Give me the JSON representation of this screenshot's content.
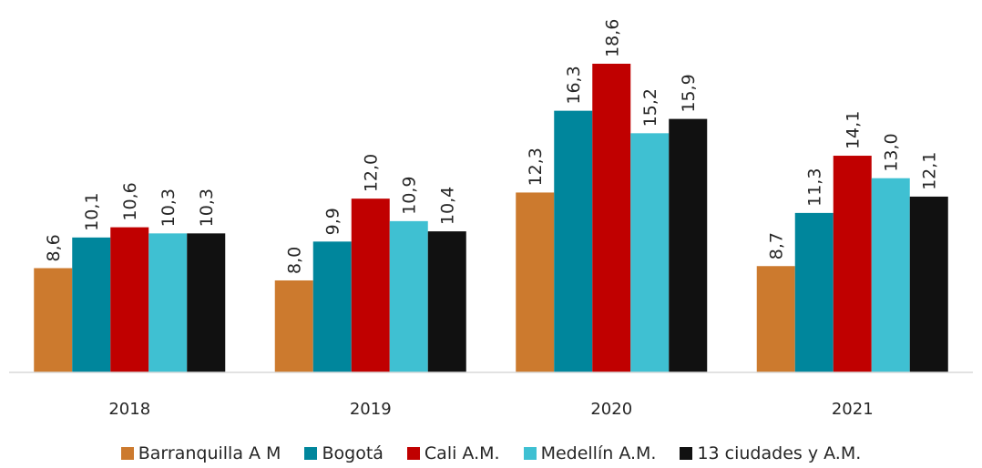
{
  "chart_data": {
    "type": "bar",
    "categories": [
      "2018",
      "2019",
      "2020",
      "2021"
    ],
    "series": [
      {
        "name": "Barranquilla A M",
        "color": "#cc7a2e",
        "values": [
          8.6,
          8.0,
          12.3,
          8.7
        ],
        "labels": [
          "8,6",
          "8,0",
          "12,3",
          "8,7"
        ]
      },
      {
        "name": "Bogotá",
        "color": "#00869c",
        "values": [
          10.1,
          9.9,
          16.3,
          11.3
        ],
        "labels": [
          "10,1",
          "9,9",
          "16,3",
          "11,3"
        ]
      },
      {
        "name": "Cali A.M.",
        "color": "#c00000",
        "values": [
          10.6,
          12.0,
          18.6,
          14.1
        ],
        "labels": [
          "10,6",
          "12,0",
          "18,6",
          "14,1"
        ]
      },
      {
        "name": "Medellín A.M.",
        "color": "#3fc0d2",
        "values": [
          10.3,
          10.9,
          15.2,
          13.0
        ],
        "labels": [
          "10,3",
          "10,9",
          "15,2",
          "13,0"
        ]
      },
      {
        "name": "13 ciudades y A.M.",
        "color": "#111111",
        "values": [
          10.3,
          10.4,
          15.9,
          12.1
        ],
        "labels": [
          "10,3",
          "10,4",
          "15,9",
          "12,1"
        ]
      }
    ],
    "title": "",
    "xlabel": "",
    "ylabel": "",
    "ylim": [
      3.5,
      18.6
    ],
    "grid": false,
    "legend": "bottom"
  }
}
